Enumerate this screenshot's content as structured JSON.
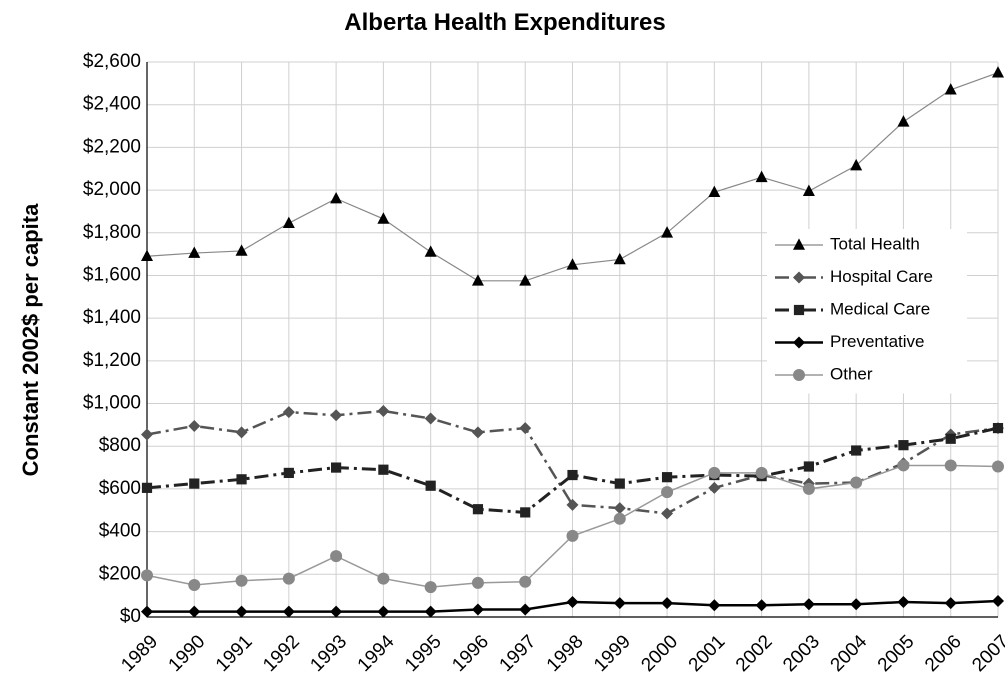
{
  "chart_data": {
    "type": "line",
    "title": "Alberta Health Expenditures",
    "y_label": "Constant 2002$ per capita",
    "categories": [
      "1989",
      "1990",
      "1991",
      "1992",
      "1993",
      "1994",
      "1995",
      "1996",
      "1997",
      "1998",
      "1999",
      "2000",
      "2001",
      "2002",
      "2003",
      "2004",
      "2005",
      "2006",
      "2007"
    ],
    "series": [
      {
        "name": "Total Health",
        "color": "#888888",
        "marker_color": "#000000",
        "marker": "triangle",
        "dash": "solid",
        "width": 1.2,
        "values": [
          1690,
          1705,
          1715,
          1845,
          1960,
          1865,
          1710,
          1575,
          1575,
          1650,
          1675,
          1800,
          1990,
          2060,
          1995,
          2115,
          2320,
          2470,
          2550
        ]
      },
      {
        "name": "Hospital Care",
        "color": "#555555",
        "marker_color": "#555555",
        "marker": "diamond",
        "dash": "dashdot",
        "width": 2.5,
        "values": [
          855,
          895,
          865,
          960,
          945,
          965,
          930,
          865,
          885,
          525,
          510,
          485,
          605,
          665,
          625,
          630,
          720,
          855,
          885
        ]
      },
      {
        "name": "Medical Care",
        "color": "#222222",
        "marker_color": "#222222",
        "marker": "square",
        "dash": "dashdot",
        "width": 3,
        "values": [
          605,
          625,
          645,
          675,
          700,
          690,
          615,
          505,
          490,
          665,
          625,
          655,
          665,
          660,
          705,
          780,
          805,
          835,
          885
        ]
      },
      {
        "name": "Preventative",
        "color": "#000000",
        "marker_color": "#000000",
        "marker": "diamond",
        "dash": "solid",
        "width": 2.5,
        "values": [
          25,
          25,
          25,
          25,
          25,
          25,
          25,
          35,
          35,
          70,
          65,
          65,
          55,
          55,
          60,
          60,
          70,
          65,
          75
        ]
      },
      {
        "name": "Other",
        "color": "#999999",
        "marker_color": "#888888",
        "marker": "circle",
        "dash": "solid",
        "width": 1.5,
        "values": [
          195,
          150,
          170,
          180,
          285,
          180,
          140,
          160,
          165,
          380,
          460,
          585,
          675,
          675,
          600,
          630,
          710,
          710,
          705
        ]
      }
    ],
    "ylim": [
      0,
      2600
    ],
    "yticks": [
      {
        "value": 0,
        "label": "$0"
      },
      {
        "value": 200,
        "label": "$200"
      },
      {
        "value": 400,
        "label": "$400"
      },
      {
        "value": 600,
        "label": "$600"
      },
      {
        "value": 800,
        "label": "$800"
      },
      {
        "value": 1000,
        "label": "$1,000"
      },
      {
        "value": 1200,
        "label": "$1,200"
      },
      {
        "value": 1400,
        "label": "$1,400"
      },
      {
        "value": 1600,
        "label": "$1,600"
      },
      {
        "value": 1800,
        "label": "$1,800"
      },
      {
        "value": 2000,
        "label": "$2,000"
      },
      {
        "value": 2200,
        "label": "$2,200"
      },
      {
        "value": 2400,
        "label": "$2,400"
      },
      {
        "value": 2600,
        "label": "$2,600"
      }
    ],
    "grid": true,
    "legend": "right"
  }
}
